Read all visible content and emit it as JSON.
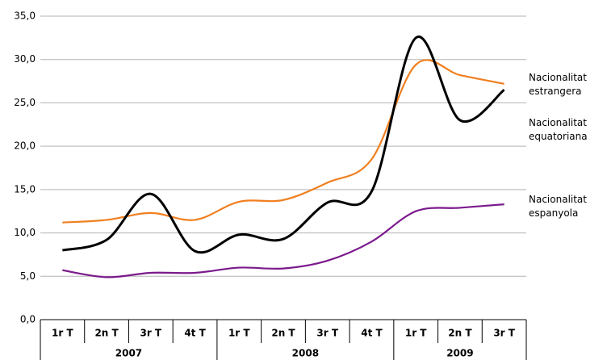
{
  "chart_data": {
    "type": "line",
    "categories": [
      [
        "1r T",
        "2007"
      ],
      [
        "2n T",
        "2007"
      ],
      [
        "3r T",
        "2007"
      ],
      [
        "4t T",
        "2007"
      ],
      [
        "1r T",
        "2008"
      ],
      [
        "2n T",
        "2008"
      ],
      [
        "3r T",
        "2008"
      ],
      [
        "4t T",
        "2008"
      ],
      [
        "1r T",
        "2009"
      ],
      [
        "2n T",
        "2009"
      ],
      [
        "3r T",
        "2009"
      ]
    ],
    "series": [
      {
        "name": "Nacionalitat estrangera",
        "color": "#f07f1f",
        "values": [
          11.2,
          11.5,
          12.3,
          11.5,
          13.6,
          13.8,
          15.8,
          18.5,
          29.4,
          28.2,
          27.2
        ]
      },
      {
        "name": "Nacionalitat equatoriana",
        "color": "#000000",
        "values": [
          8.0,
          9.2,
          14.5,
          7.9,
          9.8,
          9.3,
          13.5,
          14.8,
          32.5,
          23.0,
          26.5
        ]
      },
      {
        "name": "Nacionalitat espanyola",
        "color": "#7b1a8c",
        "values": [
          5.7,
          4.9,
          5.4,
          5.4,
          6.0,
          5.9,
          6.8,
          9.0,
          12.5,
          12.9,
          13.3
        ]
      }
    ],
    "ylim": [
      0,
      35
    ],
    "yticks": [
      {
        "value": 0,
        "label": "0,0"
      },
      {
        "value": 5,
        "label": "5,0"
      },
      {
        "value": 10,
        "label": "10,0"
      },
      {
        "value": 15,
        "label": "15,0"
      },
      {
        "value": 20,
        "label": "20,0"
      },
      {
        "value": 25,
        "label": "25,0"
      },
      {
        "value": 30,
        "label": "30,0"
      },
      {
        "value": 35,
        "label": "35,0"
      }
    ],
    "grid": true
  }
}
